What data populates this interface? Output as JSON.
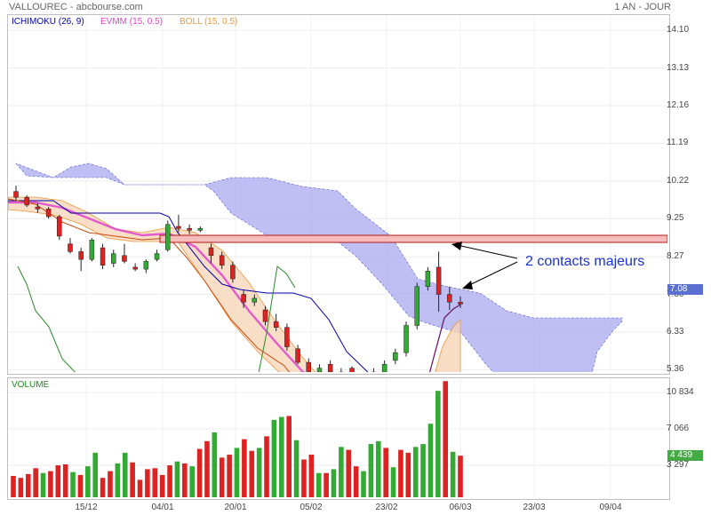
{
  "header": {
    "title": "VALLOUREC - abcbourse.com",
    "period": "1 AN - JOUR"
  },
  "legend": {
    "ichimoku": "ICHIMOKU (26, 9)",
    "evmm": "EVMM (15, 0.5)",
    "boll": "BOLL (15, 0.5)",
    "volume": "VOLUME"
  },
  "colors": {
    "ichimoku": "#0000aa",
    "evmm": "#dd44cc",
    "boll": "#e89a3c",
    "cloud": "#aaaaf0",
    "up": "#33aa33",
    "down": "#dd2222",
    "resistance": "#f6bcbc",
    "annotation": "#1a32c8"
  },
  "annotation": {
    "text": "2 contacts majeurs"
  },
  "last_price_label": "7.08",
  "last_volume_label": "4 439",
  "chart_data": [
    {
      "type": "candlestick",
      "title": "VALLOUREC - abcbourse.com",
      "y_ticks": [
        "14.10",
        "13.13",
        "12.16",
        "11.19",
        "10.22",
        "9.25",
        "8.27",
        "7.30",
        "6.33",
        "5.36"
      ],
      "x_ticks": [
        "15/12",
        "04/01",
        "20/01",
        "05/02",
        "23/02",
        "06/03",
        "23/03",
        "09/04"
      ],
      "ylim": [
        5.3,
        14.4
      ],
      "last_value": 7.08,
      "resistance_zone": [
        8.4,
        8.55
      ],
      "series": [
        {
          "name": "Candles",
          "ohlc": [
            [
              9.95,
              10.1,
              9.7,
              9.8
            ],
            [
              9.8,
              9.85,
              9.55,
              9.6
            ],
            [
              9.55,
              9.65,
              9.4,
              9.5
            ],
            [
              9.5,
              9.55,
              9.25,
              9.3
            ],
            [
              9.3,
              9.35,
              8.7,
              8.8
            ],
            [
              8.6,
              8.75,
              8.35,
              8.4
            ],
            [
              8.4,
              8.5,
              7.9,
              8.2
            ],
            [
              8.2,
              8.75,
              8.15,
              8.7
            ],
            [
              8.5,
              8.6,
              7.95,
              8.05
            ],
            [
              8.1,
              8.45,
              8.0,
              8.35
            ],
            [
              8.3,
              8.6,
              8.1,
              8.15
            ],
            [
              8.0,
              8.1,
              7.9,
              7.95
            ],
            [
              7.95,
              8.2,
              7.85,
              8.15
            ],
            [
              8.2,
              8.45,
              8.15,
              8.35
            ],
            [
              8.45,
              9.2,
              8.4,
              9.1
            ],
            [
              9.05,
              9.35,
              8.9,
              9.0
            ],
            [
              9.0,
              9.1,
              8.85,
              8.95
            ],
            [
              8.95,
              9.05,
              8.9,
              9.0
            ],
            [
              8.5,
              8.6,
              8.1,
              8.3
            ],
            [
              8.3,
              8.4,
              7.95,
              8.05
            ],
            [
              8.05,
              8.15,
              7.6,
              7.7
            ],
            [
              7.3,
              7.4,
              6.95,
              7.1
            ],
            [
              7.1,
              7.3,
              7.0,
              7.2
            ],
            [
              6.9,
              7.0,
              6.5,
              6.6
            ],
            [
              6.6,
              6.8,
              6.35,
              6.45
            ],
            [
              6.45,
              6.55,
              5.85,
              5.95
            ],
            [
              5.9,
              6.0,
              5.5,
              5.55
            ],
            [
              5.55,
              5.65,
              5.2,
              5.3
            ],
            [
              5.3,
              5.5,
              5.1,
              5.4
            ],
            [
              5.5,
              5.6,
              5.2,
              5.3
            ],
            [
              5.3,
              5.4,
              5.0,
              5.1
            ],
            [
              5.4,
              5.45,
              5.1,
              5.2
            ],
            [
              5.2,
              5.3,
              4.9,
              5.0
            ],
            [
              5.0,
              5.4,
              4.9,
              5.3
            ],
            [
              5.3,
              5.6,
              5.2,
              5.5
            ],
            [
              5.6,
              5.9,
              5.5,
              5.8
            ],
            [
              5.8,
              6.6,
              5.7,
              6.5
            ],
            [
              6.5,
              7.6,
              6.4,
              7.5
            ],
            [
              7.5,
              8.0,
              7.4,
              7.9
            ],
            [
              8.0,
              8.4,
              6.85,
              7.3
            ],
            [
              7.3,
              7.5,
              6.9,
              7.1
            ],
            [
              7.1,
              7.25,
              6.95,
              7.05
            ]
          ]
        },
        {
          "name": "ICHIMOKU (26, 9)",
          "color": "#0000aa"
        },
        {
          "name": "EVMM (15, 0.5)",
          "color": "#dd44cc"
        },
        {
          "name": "BOLL (15, 0.5)",
          "color": "#e89a3c"
        }
      ]
    },
    {
      "type": "bar",
      "title": "VOLUME",
      "y_ticks": [
        "10 834",
        "7 066",
        "3 297"
      ],
      "ylim": [
        0,
        12300
      ],
      "last_value": 4439,
      "values": [
        2200,
        2000,
        2400,
        3000,
        2500,
        2700,
        3300,
        3400,
        2600,
        2300,
        3200,
        4600,
        2000,
        2700,
        3500,
        4600,
        3600,
        1800,
        2900,
        3000,
        2300,
        3300,
        3700,
        3500,
        3200,
        5000,
        5800,
        6700,
        4100,
        4400,
        5100,
        6000,
        4800,
        5100,
        6300,
        8000,
        8300,
        8400,
        5900,
        3900,
        4400,
        2500,
        2500,
        2900,
        5200,
        4900,
        3200,
        2700,
        5500,
        5800,
        5100,
        3100,
        4900,
        4600,
        5200,
        5500,
        7600,
        11000,
        12000,
        4700,
        4300
      ],
      "colors": [
        "r",
        "r",
        "r",
        "r",
        "g",
        "r",
        "r",
        "r",
        "g",
        "r",
        "g",
        "g",
        "r",
        "r",
        "g",
        "g",
        "r",
        "r",
        "r",
        "r",
        "r",
        "r",
        "g",
        "r",
        "g",
        "r",
        "r",
        "g",
        "r",
        "r",
        "g",
        "r",
        "r",
        "g",
        "r",
        "g",
        "g",
        "r",
        "g",
        "r",
        "r",
        "g",
        "r",
        "g",
        "g",
        "r",
        "r",
        "g",
        "g",
        "g",
        "r",
        "g",
        "r",
        "r",
        "g",
        "g",
        "g",
        "g",
        "r",
        "g",
        "r"
      ]
    }
  ]
}
